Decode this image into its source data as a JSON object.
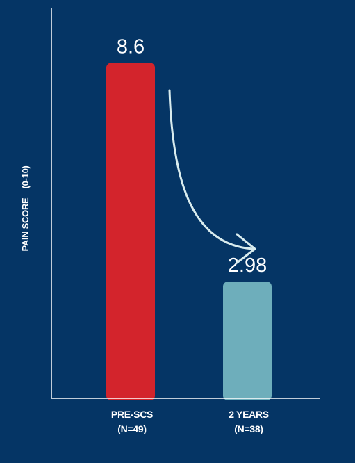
{
  "chart_data": {
    "type": "bar",
    "title": "",
    "xlabel": "",
    "ylabel": "PAIN SCORE    (0-10)",
    "ylim": [
      0,
      10
    ],
    "grid": false,
    "categories": [
      [
        "PRE-SCS",
        "(N=49)"
      ],
      [
        "2 YEARS",
        "(N=38)"
      ]
    ],
    "values": [
      8.6,
      2.98
    ],
    "value_labels": [
      "8.6",
      "2.98"
    ],
    "colors": [
      "#d3242c",
      "#6eaebb"
    ],
    "annotation": "arrow-from-first-to-second-bar"
  },
  "colors": {
    "background": "#053565",
    "axis": "#ffffff",
    "arrow": "#d9ecee"
  }
}
